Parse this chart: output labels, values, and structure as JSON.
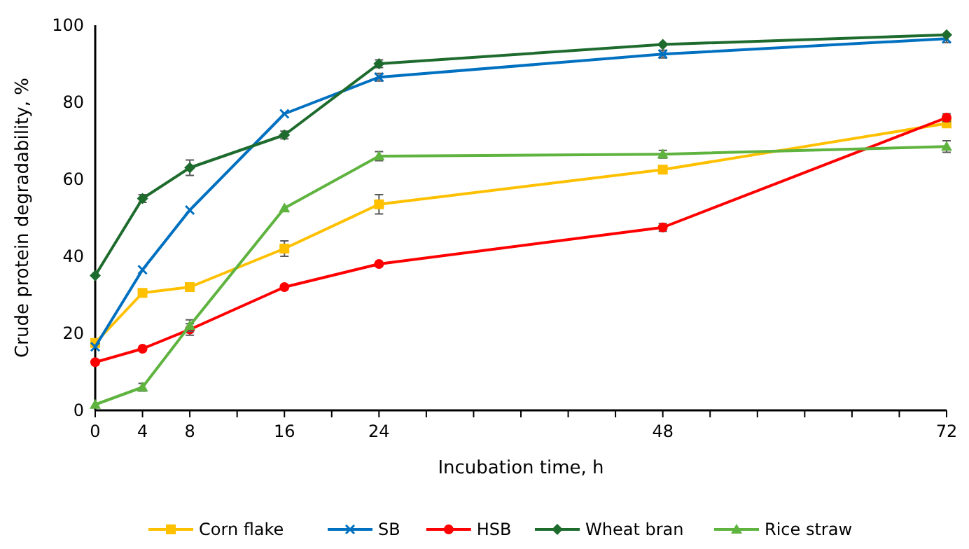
{
  "chart_data": {
    "type": "line",
    "xlabel": "Incubation time, h",
    "ylabel": "Crude protein degradability, %",
    "x": [
      0,
      4,
      8,
      16,
      24,
      48,
      72
    ],
    "xlim": [
      0,
      72
    ],
    "xticks": [
      0,
      4,
      8,
      {
        "value": 12,
        "label": null
      },
      16,
      {
        "value": 20,
        "label": null
      },
      24,
      {
        "value": 28,
        "label": null
      },
      {
        "value": 32,
        "label": null
      },
      {
        "value": 36,
        "label": null
      },
      {
        "value": 40,
        "label": null
      },
      {
        "value": 44,
        "label": null
      },
      48,
      {
        "value": 52,
        "label": null
      },
      {
        "value": 56,
        "label": null
      },
      {
        "value": 60,
        "label": null
      },
      {
        "value": 64,
        "label": null
      },
      {
        "value": 68,
        "label": null
      },
      72
    ],
    "ylim": [
      0,
      100
    ],
    "yticks": [
      0,
      20,
      40,
      60,
      80,
      100
    ],
    "grid": false,
    "legend": "bottom",
    "series": [
      {
        "name": "Corn flake",
        "color": "#ffc000",
        "marker": "square",
        "values": [
          17.5,
          30.5,
          32,
          42,
          53.5,
          62.5,
          74.5
        ],
        "errors": [
          null,
          null,
          null,
          2,
          2.5,
          null,
          null
        ]
      },
      {
        "name": "SB",
        "color": "#0070c0",
        "marker": "cross",
        "values": [
          16.5,
          36.5,
          52,
          77,
          86.5,
          92.5,
          96.5
        ],
        "errors": [
          null,
          null,
          null,
          null,
          1,
          1,
          1
        ]
      },
      {
        "name": "HSB",
        "color": "#ff0000",
        "marker": "circle",
        "values": [
          12.5,
          16,
          21,
          32,
          38,
          47.5,
          76
        ],
        "errors": [
          null,
          null,
          1.5,
          null,
          null,
          1,
          1
        ]
      },
      {
        "name": "Wheat bran",
        "color": "#1e6b2e",
        "marker": "diamond",
        "values": [
          35,
          55,
          63,
          71.5,
          90,
          95,
          97.5
        ],
        "errors": [
          null,
          1,
          2,
          1,
          1,
          null,
          null
        ]
      },
      {
        "name": "Rice straw",
        "color": "#5fb33f",
        "marker": "triangle",
        "values": [
          1.5,
          6,
          22,
          52.5,
          66,
          66.5,
          68.5
        ],
        "errors": [
          null,
          1,
          1.5,
          null,
          1.2,
          1,
          1.5
        ]
      }
    ]
  }
}
